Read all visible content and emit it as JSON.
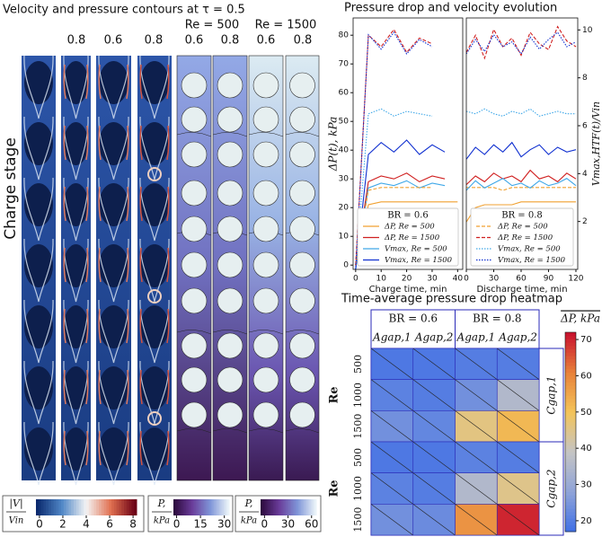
{
  "figure": {
    "title": "Velocity and pressure contours at τ = 0.5",
    "stage_label": "Charge stage",
    "velocity_labels": [
      "0.8",
      "0.6",
      "0.8"
    ],
    "re_labels": [
      "Re = 500",
      "Re = 1500"
    ],
    "pressure_labels": [
      "0.6",
      "0.8",
      "0.6",
      "0.8"
    ],
    "colorbars": [
      {
        "label": [
          "|V|",
          "Vin"
        ],
        "lim": [
          -0.3,
          8.3
        ],
        "ticks": [
          0,
          2,
          4,
          6,
          8
        ],
        "colors": [
          "#0b2a6e",
          "#4f86c6",
          "#f4f4f4",
          "#e07050",
          "#6b0015"
        ]
      },
      {
        "label": [
          "P,",
          "kPa"
        ],
        "lim": [
          -2,
          33
        ],
        "ticks": [
          0,
          15,
          30
        ],
        "colors": [
          "#2d0a3e",
          "#6a3d9a",
          "#7f95d8",
          "#eaf3f8"
        ]
      },
      {
        "label": [
          "P,",
          "kPa"
        ],
        "lim": [
          -5,
          66
        ],
        "ticks": [
          0,
          30,
          60
        ],
        "colors": [
          "#2d0a3e",
          "#6a3d9a",
          "#7f95d8",
          "#eaf3f8"
        ]
      }
    ]
  },
  "chart_data": [
    {
      "type": "line",
      "title": "Pressure drop and velocity evolution",
      "xlabel": "Charge time, min",
      "ylabel": "ΔP(t), kPa",
      "x": [
        0,
        5,
        10,
        15,
        20,
        25,
        30,
        35,
        40
      ],
      "xlim": [
        -1,
        42
      ],
      "xticks": [
        0,
        10,
        20,
        30,
        40
      ],
      "ylim": [
        -1.5,
        86
      ],
      "yticks": [
        0,
        10,
        20,
        30,
        40,
        50,
        60,
        70,
        80
      ],
      "y2lim": [
        0,
        10.5
      ],
      "legend": "lower center",
      "legend_title": "BR = 0.6",
      "series": [
        {
          "name": "ΔP, Re = 500",
          "color": "#f0a030",
          "linestyle": "solid",
          "values": [
            0,
            21,
            22,
            22,
            22,
            22,
            22,
            22,
            22
          ]
        },
        {
          "name": "ΔP, Re = 1500",
          "color": "#d02020",
          "linestyle": "solid",
          "values": [
            0,
            29,
            31,
            30,
            32,
            29,
            31,
            30,
            null
          ]
        },
        {
          "name": "Vmax, Re = 500",
          "color": "#40a8e8",
          "linestyle": "solid",
          "axis": "y2",
          "values": [
            0,
            3.4,
            3.6,
            3.5,
            3.7,
            3.4,
            3.6,
            3.5,
            null
          ]
        },
        {
          "name": "Vmax, Re = 1500",
          "color": "#1030d0",
          "linestyle": "solid",
          "axis": "y2",
          "values": [
            0,
            4.8,
            5.3,
            4.9,
            5.4,
            4.8,
            5.2,
            4.9,
            null
          ]
        },
        {
          "color": "#f0a030",
          "linestyle": "dashed",
          "values": [
            0,
            26,
            27,
            27,
            27,
            27,
            27,
            null,
            null
          ]
        },
        {
          "color": "#d02020",
          "linestyle": "dashed",
          "values": [
            0,
            80,
            76,
            82,
            74,
            79,
            77,
            null,
            null
          ]
        },
        {
          "color": "#40a8e8",
          "linestyle": "dotted",
          "axis": "y2",
          "values": [
            0,
            6.5,
            6.7,
            6.4,
            6.6,
            6.5,
            6.4,
            null,
            null
          ]
        },
        {
          "color": "#1030d0",
          "linestyle": "dotted",
          "axis": "y2",
          "values": [
            0,
            9.8,
            9.2,
            9.9,
            9.0,
            9.6,
            9.3,
            null,
            null
          ]
        }
      ]
    },
    {
      "type": "line",
      "xlabel": "Discharge time, min",
      "y2label": "Vmax,HTF(t)/Vin",
      "x": [
        0,
        10,
        20,
        30,
        40,
        50,
        60,
        70,
        80,
        90,
        100,
        110,
        120
      ],
      "xlim": [
        0,
        122
      ],
      "xticks": [
        0,
        30,
        60,
        90,
        120
      ],
      "ylim": [
        -1.5,
        86
      ],
      "y2lim": [
        0,
        10.5
      ],
      "y2ticks": [
        2,
        4,
        6,
        8,
        10
      ],
      "legend": "lower center",
      "legend_title": "BR = 0.8",
      "series": [
        {
          "name": "ΔP, Re = 500",
          "color": "#f0a030",
          "linestyle": "dashed",
          "values": [
            27,
            27,
            27,
            27,
            26,
            27,
            27,
            27,
            27,
            27,
            27,
            27,
            27
          ]
        },
        {
          "name": "ΔP, Re = 1500",
          "color": "#d02020",
          "linestyle": "dashed",
          "values": [
            74,
            80,
            72,
            82,
            76,
            79,
            73,
            81,
            77,
            75,
            83,
            78,
            76
          ]
        },
        {
          "name": "Vmax, Re = 500",
          "color": "#40a8e8",
          "linestyle": "dotted",
          "axis": "y2",
          "values": [
            6.6,
            6.5,
            6.7,
            6.5,
            6.4,
            6.6,
            6.5,
            6.7,
            6.4,
            6.5,
            6.6,
            6.5,
            6.5
          ]
        },
        {
          "name": "Vmax, Re = 1500",
          "color": "#1030d0",
          "linestyle": "dotted",
          "axis": "y2",
          "values": [
            9.0,
            9.6,
            9.1,
            9.8,
            9.3,
            9.5,
            9.0,
            9.7,
            9.2,
            9.6,
            9.9,
            9.3,
            9.5
          ]
        },
        {
          "color": "#f0a030",
          "linestyle": "solid",
          "values": [
            15,
            20,
            21,
            21,
            21,
            21,
            22,
            22,
            22,
            22,
            22,
            22,
            22
          ]
        },
        {
          "color": "#d02020",
          "linestyle": "solid",
          "values": [
            28,
            31,
            29,
            32,
            30,
            31,
            29,
            33,
            30,
            31,
            29,
            32,
            30
          ]
        },
        {
          "color": "#40a8e8",
          "linestyle": "solid",
          "axis": "y2",
          "values": [
            3.3,
            3.7,
            3.4,
            3.6,
            3.8,
            3.5,
            3.6,
            3.4,
            3.7,
            3.5,
            3.6,
            3.8,
            3.5
          ]
        },
        {
          "color": "#1030d0",
          "linestyle": "solid",
          "axis": "y2",
          "values": [
            4.6,
            5.1,
            4.8,
            5.2,
            4.9,
            5.3,
            4.7,
            5.0,
            5.2,
            4.8,
            5.1,
            4.9,
            5.0
          ]
        }
      ]
    },
    {
      "type": "heatmap",
      "title": "Time-average pressure drop heatmap",
      "column_groups": [
        "BR = 0.6",
        "BR = 0.8"
      ],
      "columns": [
        "Agap,1",
        "Agap,2",
        "Agap,1",
        "Agap,2"
      ],
      "row_groups": [
        "Cgap,1",
        "Cgap,2"
      ],
      "row_axis_labels": [
        "Re",
        "Re"
      ],
      "rows": [
        500,
        1000,
        1500,
        500,
        1000,
        1500
      ],
      "values": [
        [
          19,
          19,
          20,
          20
        ],
        [
          21,
          20,
          24,
          35
        ],
        [
          24,
          22,
          46,
          52
        ],
        [
          19,
          19,
          21,
          20
        ],
        [
          21,
          20,
          35,
          45
        ],
        [
          24,
          23,
          58,
          70
        ]
      ],
      "colorbar_label": "ΔP, kPa",
      "zlim": [
        17,
        72
      ],
      "zticks": [
        20,
        30,
        40,
        50,
        60,
        70
      ],
      "colors": [
        "#3f6fe6",
        "#8fa3d8",
        "#c4c4c4",
        "#f3c45a",
        "#e8813a",
        "#c8102e"
      ]
    }
  ]
}
